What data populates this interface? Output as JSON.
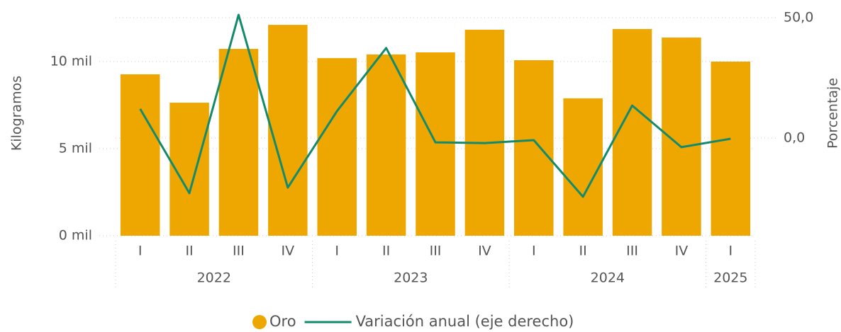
{
  "chart_data": {
    "type": "bar_line",
    "y_axis_label": "Kilogramos",
    "y2_axis_label": "Porcentaje",
    "category_groups": [
      {
        "label": "2022",
        "categories": [
          "I",
          "II",
          "III",
          "IV"
        ]
      },
      {
        "label": "2023",
        "categories": [
          "I",
          "II",
          "III",
          "IV"
        ]
      },
      {
        "label": "2024",
        "categories": [
          "I",
          "II",
          "III",
          "IV"
        ]
      },
      {
        "label": "2025",
        "categories": [
          "I"
        ]
      }
    ],
    "series": [
      {
        "name": "Oro",
        "type": "bar",
        "color": "#EEA600",
        "values": [
          9270,
          7640,
          10730,
          12110,
          10200,
          10410,
          10530,
          11830,
          10080,
          7890,
          11870,
          11380,
          10000
        ]
      },
      {
        "name": "Variación anual (eje derecho)",
        "type": "line",
        "axis": "y2",
        "color": "#148A6C",
        "values": [
          12.1,
          -22.9,
          51.2,
          -20.6,
          11.2,
          37.4,
          -1.8,
          -2.1,
          -0.9,
          -24.4,
          13.5,
          -3.8,
          -0.3
        ]
      }
    ],
    "ylim": [
      0,
      12700
    ],
    "yticks": [
      {
        "value": 0,
        "label": "0 mil"
      },
      {
        "value": 5000,
        "label": "5 mil"
      },
      {
        "value": 10000,
        "label": "10 mil"
      }
    ],
    "y2lim": [
      -40.6,
      51.3
    ],
    "y2ticks": [
      {
        "value": 0,
        "label": "0,0"
      },
      {
        "value": 50,
        "label": "50,0"
      }
    ],
    "grid": true,
    "legend": "bottom"
  }
}
